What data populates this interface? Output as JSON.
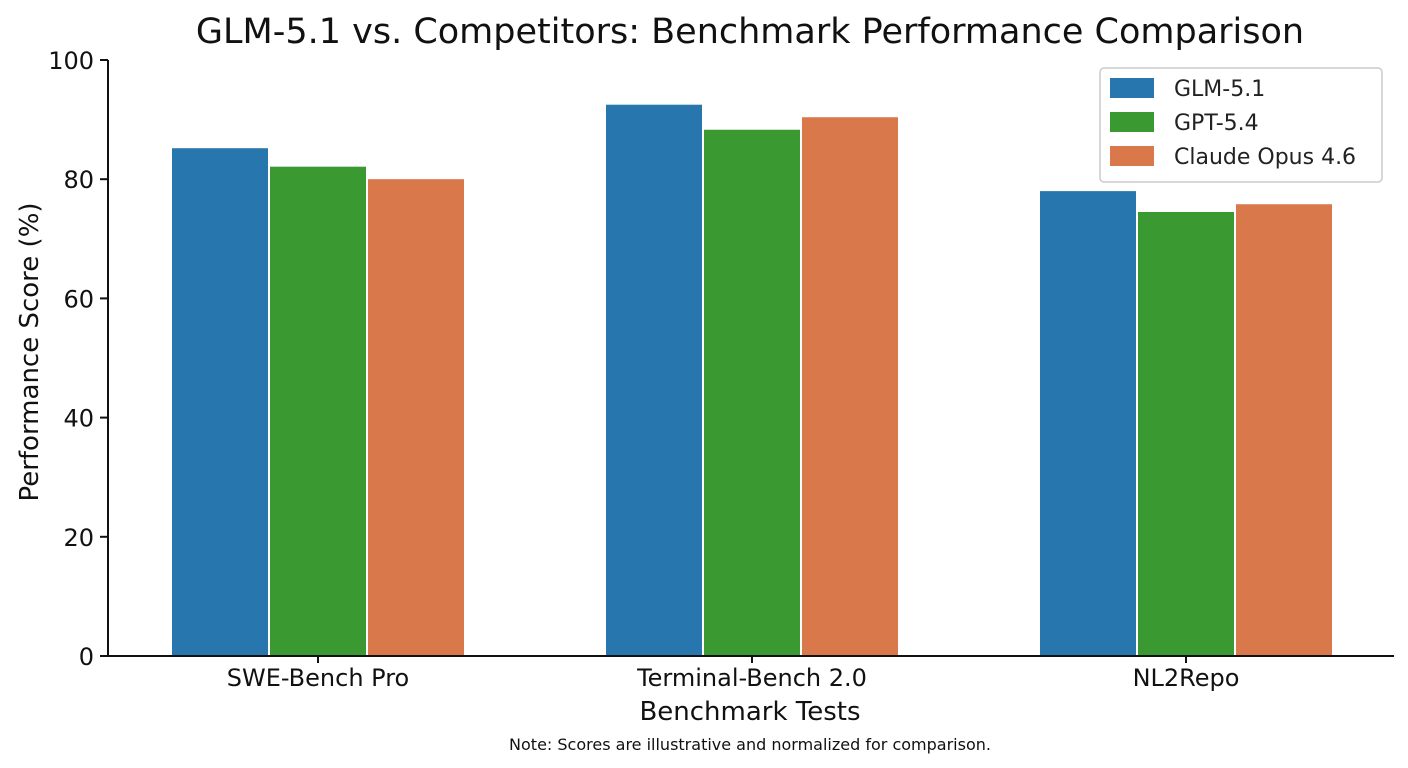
{
  "chart_data": {
    "type": "bar",
    "title": "GLM-5.1 vs. Competitors: Benchmark Performance Comparison",
    "xlabel": "Benchmark Tests",
    "ylabel": "Performance Score (%)",
    "note": "Note: Scores are illustrative and normalized for comparison.",
    "categories": [
      "SWE-Bench Pro",
      "Terminal-Bench 2.0",
      "NL2Repo"
    ],
    "series": [
      {
        "name": "GLM-5.1",
        "color": "#2776ae",
        "values": [
          85.2,
          92.5,
          78.0
        ]
      },
      {
        "name": "GPT-5.4",
        "color": "#3a9a31",
        "values": [
          82.1,
          88.3,
          74.5
        ]
      },
      {
        "name": "Claude Opus 4.6",
        "color": "#d9784b",
        "values": [
          80.0,
          90.4,
          75.8
        ]
      }
    ],
    "ylim": [
      0,
      100
    ],
    "yticks": [
      "0",
      "20",
      "40",
      "60",
      "80",
      "100"
    ],
    "grid": false,
    "legend_position": "top-right"
  }
}
